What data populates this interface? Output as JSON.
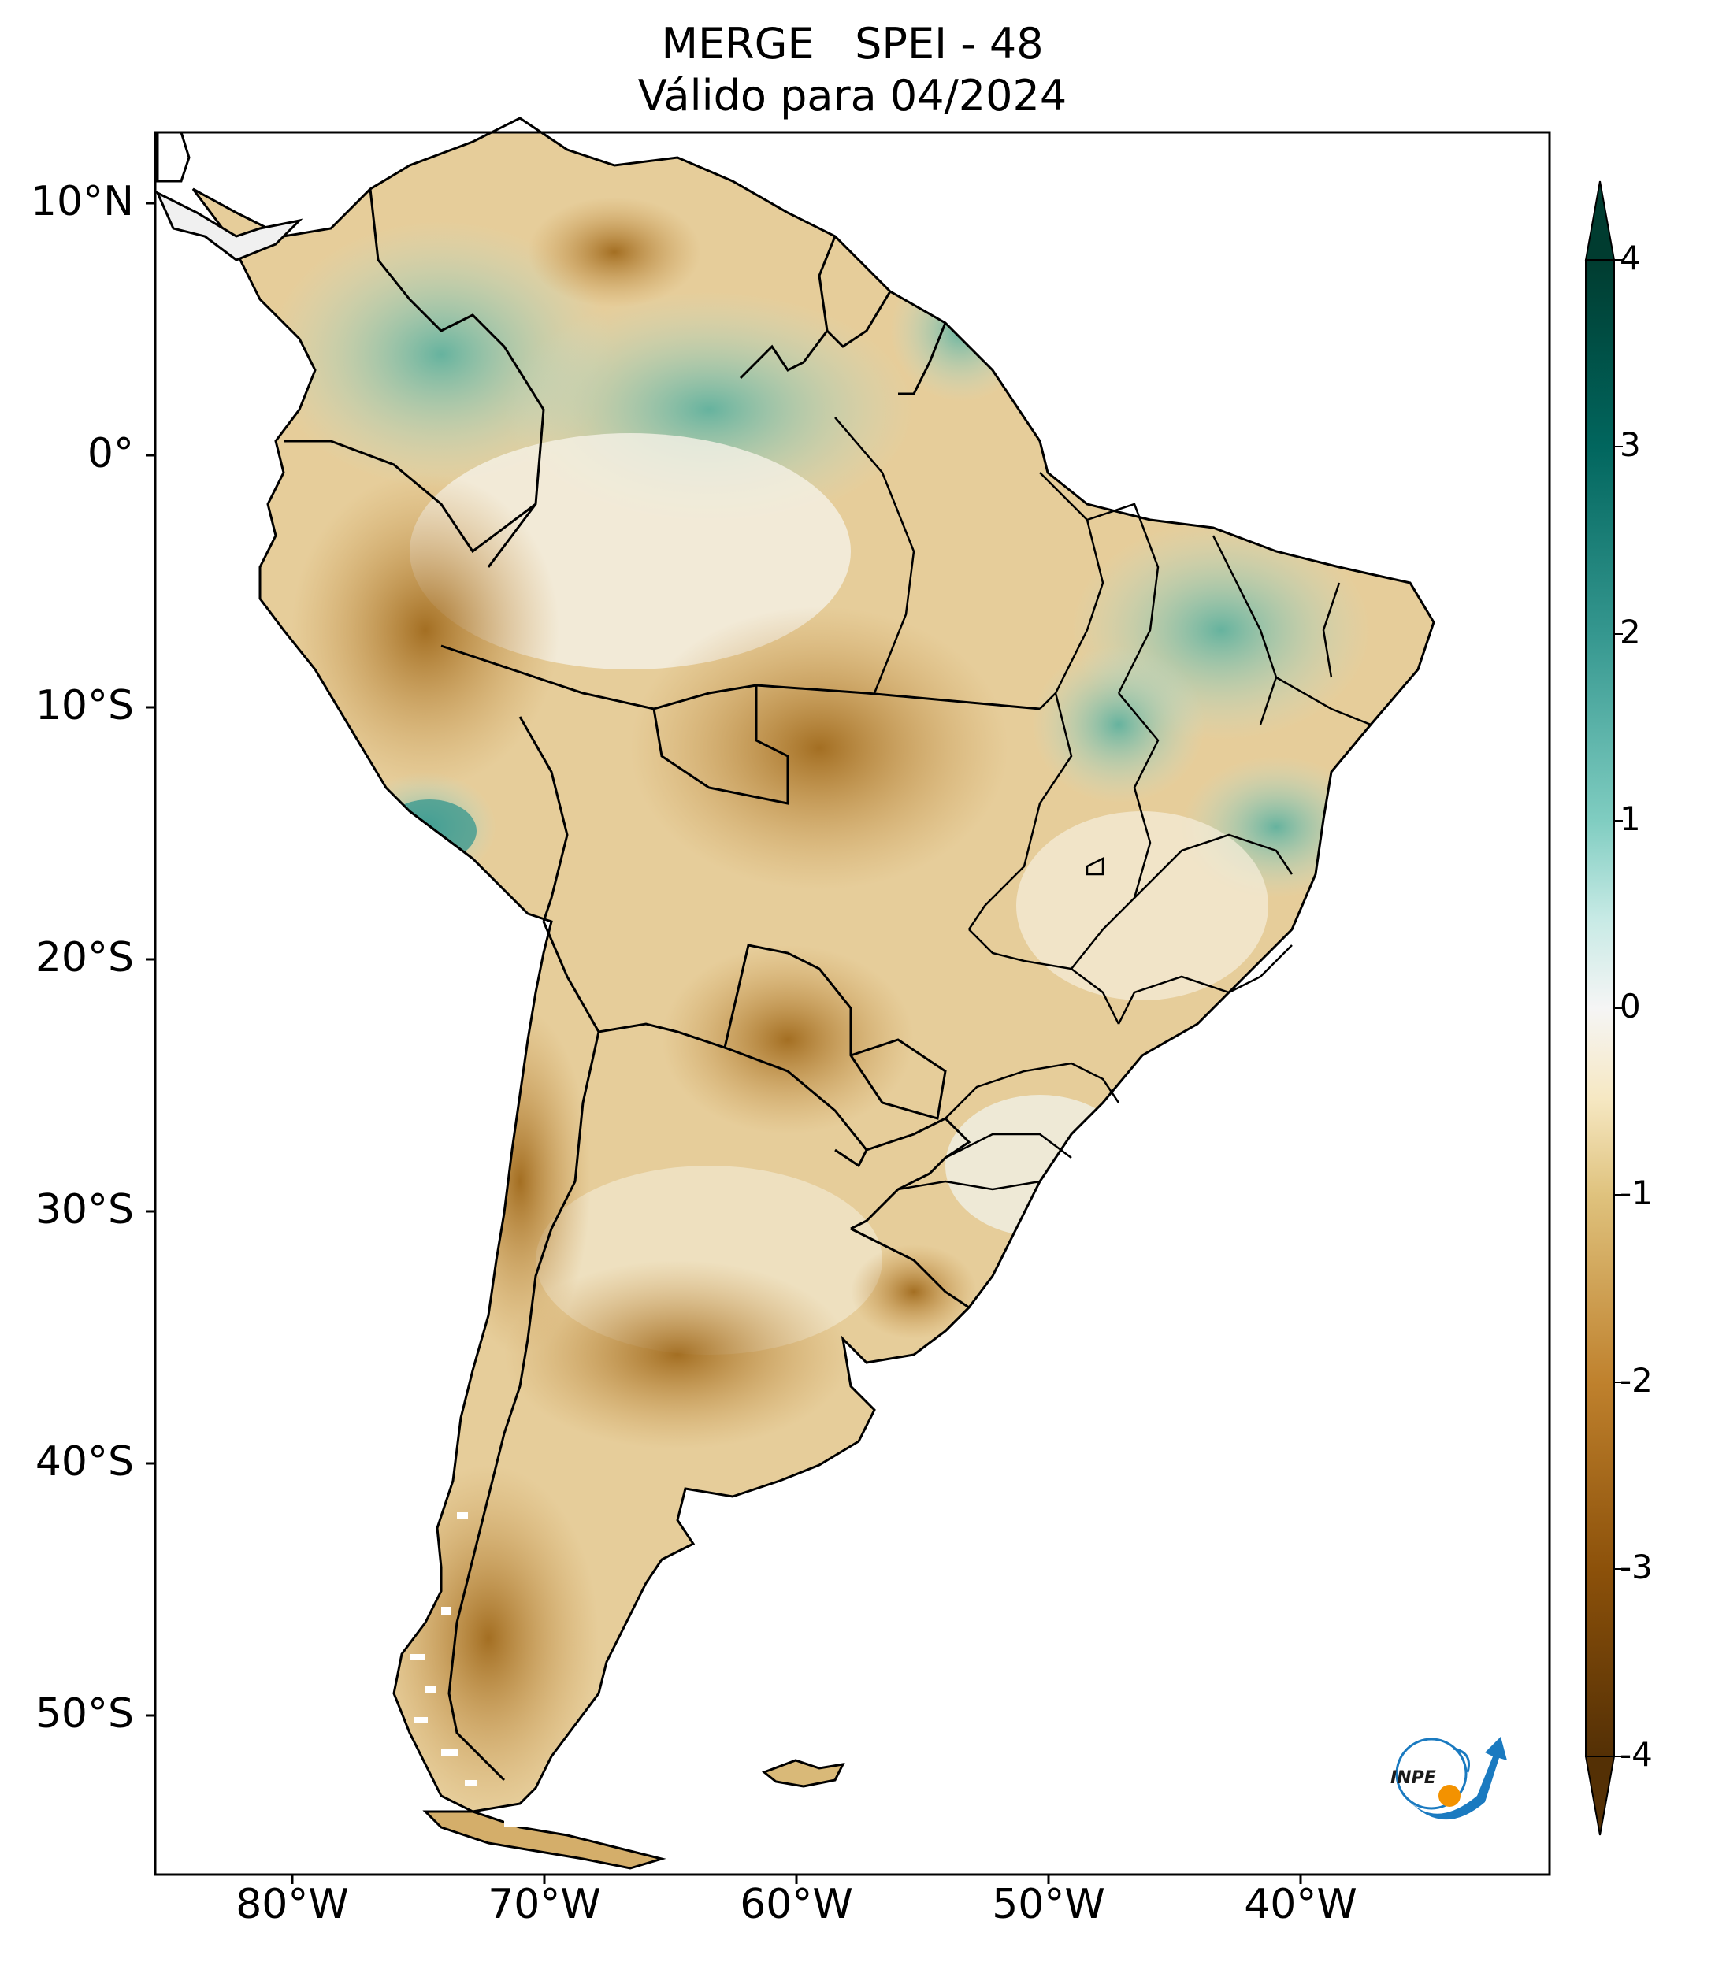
{
  "title": {
    "line1_left": "MERGE",
    "line1_right": "SPEI - 48",
    "line2": "Válido para 04/2024"
  },
  "axes": {
    "lat_labels": [
      "10°N",
      "0°",
      "10°S",
      "20°S",
      "30°S",
      "40°S",
      "50°S"
    ],
    "lon_labels": [
      "80°W",
      "70°W",
      "60°W",
      "50°W",
      "40°W"
    ]
  },
  "colorbar": {
    "ticks": [
      "4",
      "3",
      "2",
      "1",
      "0",
      "-1",
      "-2",
      "-3",
      "-4"
    ],
    "colors": {
      "wet_max": "#003c30",
      "wet_mid": "#35978f",
      "wet_low": "#c7eae5",
      "neutral": "#f5f5f5",
      "dry_low": "#f6e8c3",
      "dry_mid": "#bf812d",
      "dry_max": "#543005"
    }
  },
  "logo": {
    "text": "INPE"
  }
}
